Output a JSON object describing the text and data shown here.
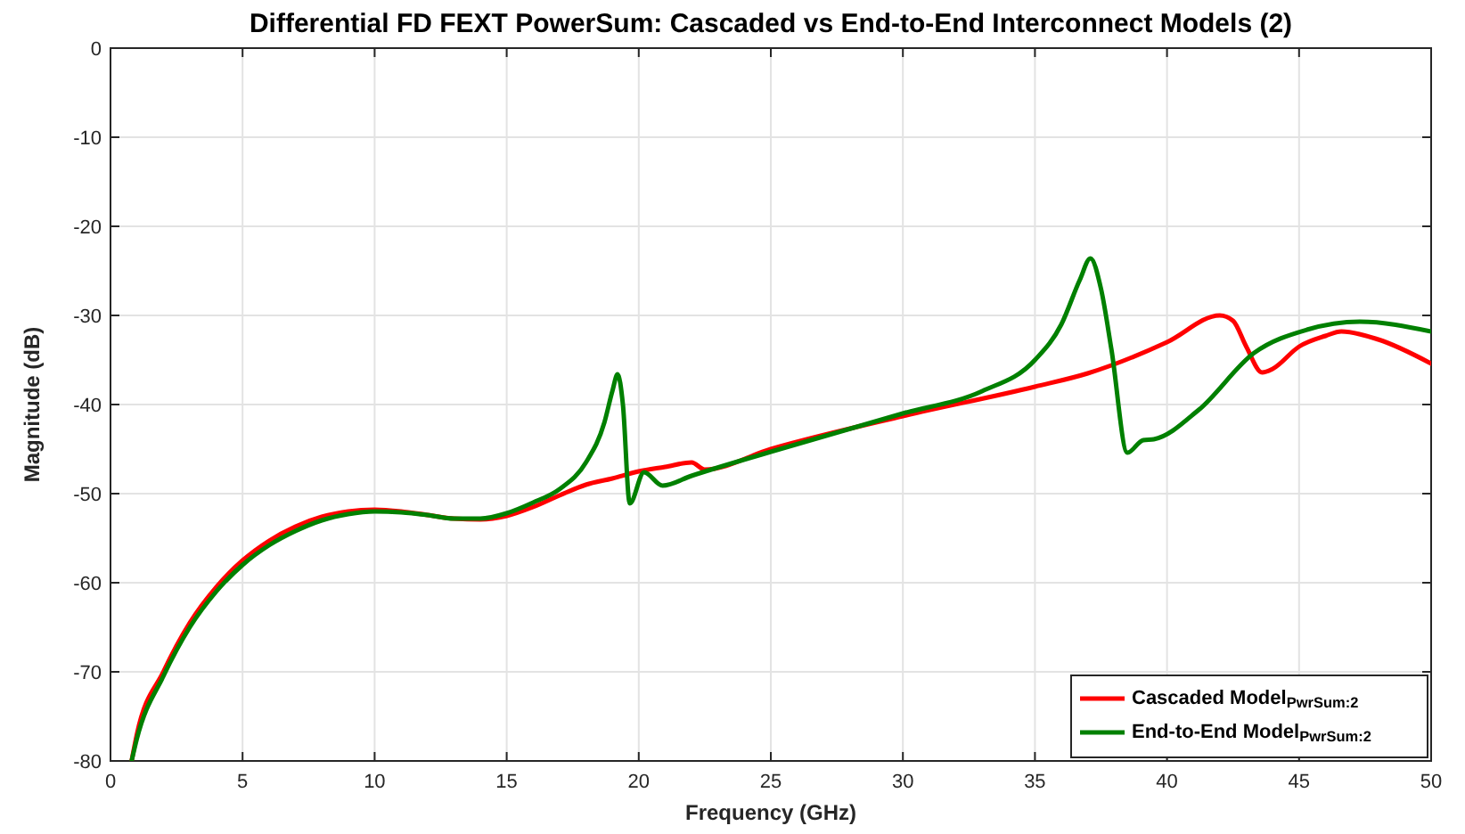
{
  "chart_data": {
    "type": "line",
    "title": "Differential FD FEXT PowerSum: Cascaded vs End-to-End Interconnect Models (2)",
    "xlabel": "Frequency (GHz)",
    "ylabel": "Magnitude (dB)",
    "xlim": [
      0,
      50
    ],
    "ylim": [
      -80,
      0
    ],
    "xticks": [
      0,
      5,
      10,
      15,
      20,
      25,
      30,
      35,
      40,
      45,
      50
    ],
    "yticks": [
      -80,
      -70,
      -60,
      -50,
      -40,
      -30,
      -20,
      -10,
      0
    ],
    "grid": true,
    "legend": "bottom right",
    "line_style": "solid",
    "series": [
      {
        "name": "Cascaded Model$_{PwrSum:2}$",
        "color": "#ff0000",
        "x": [
          0.8,
          1,
          2,
          3,
          4,
          5,
          6,
          7,
          8,
          9,
          10,
          11,
          12,
          13,
          14,
          15,
          16,
          17,
          18,
          19,
          20,
          21,
          22,
          22.5,
          25,
          30,
          35,
          37,
          40,
          42,
          42.5,
          43,
          43.6,
          44,
          45,
          46,
          46.6,
          48,
          50
        ],
        "values": [
          -80,
          -77,
          -70,
          -64.5,
          -60.5,
          -57.5,
          -55.3,
          -53.7,
          -52.6,
          -52,
          -51.8,
          -52,
          -52.4,
          -52.8,
          -52.9,
          -52.5,
          -51.5,
          -50.2,
          -49,
          -48.3,
          -47.5,
          -47,
          -46.5,
          -47.3,
          -45,
          -41.3,
          -38,
          -36.5,
          -33,
          -30,
          -30.6,
          -33.5,
          -36.4,
          -36,
          -33.5,
          -32.3,
          -31.8,
          -32.7,
          -35.4
        ]
      },
      {
        "name": "End-to-End Model$_{PwrSum:2}$",
        "color": "#008000",
        "x": [
          0.8,
          1,
          2,
          3,
          4,
          5,
          6,
          7,
          8,
          9,
          10,
          11,
          12,
          13,
          14,
          15,
          16,
          17,
          18,
          18.7,
          19,
          19.2,
          19.4,
          19.66,
          20.2,
          20.9,
          22,
          25,
          30,
          33,
          35,
          36,
          36.7,
          37.1,
          37.5,
          37.9,
          38.5,
          39.1,
          39.5,
          41.2,
          43.3,
          45.3,
          47.3,
          50
        ],
        "values": [
          -80,
          -77.5,
          -70.5,
          -65,
          -61,
          -58,
          -55.8,
          -54.2,
          -53,
          -52.3,
          -52,
          -52.1,
          -52.4,
          -52.8,
          -52.8,
          -52.2,
          -51,
          -49.5,
          -46.5,
          -42,
          -38.5,
          -36.6,
          -40,
          -51.1,
          -47.6,
          -49.1,
          -48,
          -45.3,
          -41,
          -38.5,
          -35,
          -31,
          -26,
          -23.6,
          -27,
          -33.9,
          -45.4,
          -44,
          -43.9,
          -40.6,
          -34.2,
          -31.6,
          -30.7,
          -31.8
        ]
      }
    ]
  }
}
